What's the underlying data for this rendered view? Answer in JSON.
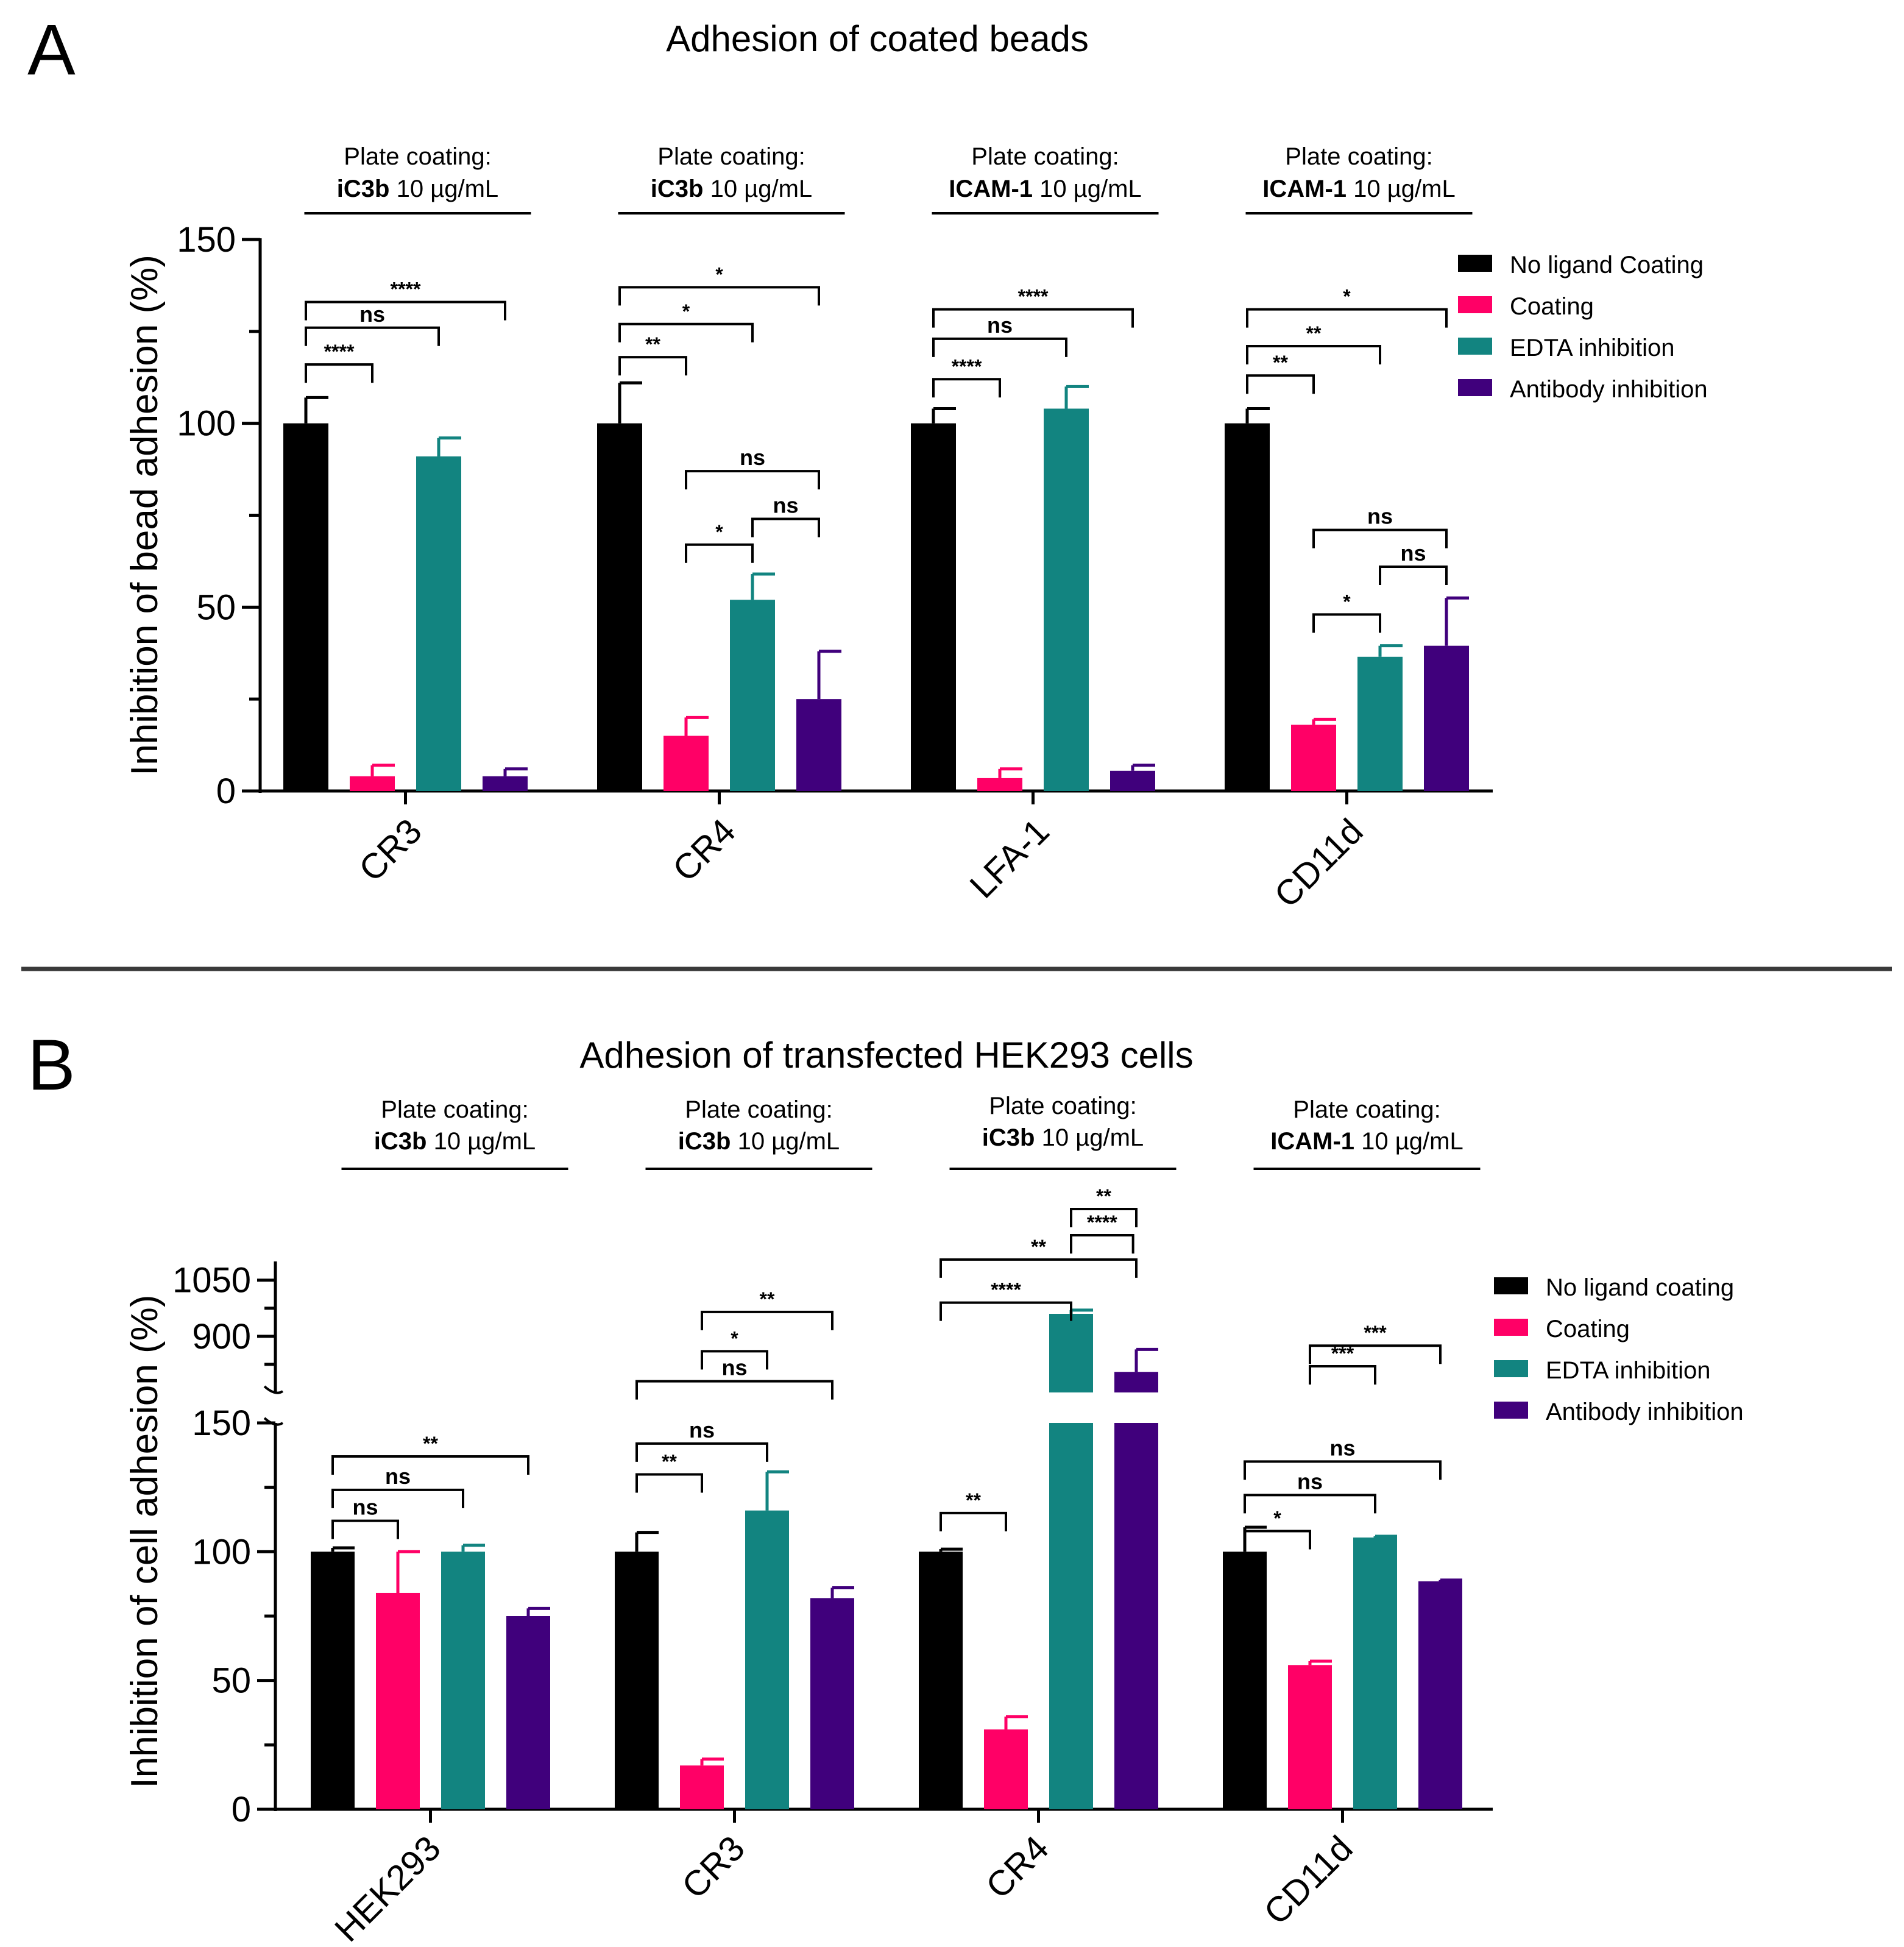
{
  "panels": {
    "a": {
      "letter": "A",
      "title": "Adhesion of coated beads"
    },
    "b": {
      "letter": "B",
      "title": "Adhesion of transfected HEK293 cells"
    }
  },
  "chart_data": [
    {
      "id": "A",
      "type": "bar",
      "title": "Adhesion of coated beads",
      "ylabel": "Inhibition of bead adhesion (%)",
      "xlabel": "",
      "ylim": [
        0,
        150
      ],
      "yticks": [
        0,
        50,
        100,
        150
      ],
      "categories": [
        "CR3",
        "CR4",
        "LFA-1",
        "CD11d"
      ],
      "plate_coating": [
        {
          "line1": "Plate coating:",
          "bold": "iC3b",
          "rest": " 10 µg/mL"
        },
        {
          "line1": "Plate coating:",
          "bold": "iC3b",
          "rest": " 10 µg/mL"
        },
        {
          "line1": "Plate coating:",
          "bold": "ICAM-1",
          "rest": " 10 µg/mL"
        },
        {
          "line1": "Plate coating:",
          "bold": "ICAM-1",
          "rest": " 10 µg/mL"
        }
      ],
      "series": [
        {
          "name": "No ligand Coating",
          "color": "#000000",
          "values": [
            100,
            100,
            100,
            100
          ],
          "errors": [
            7,
            11,
            4,
            4
          ]
        },
        {
          "name": "Coating",
          "color": "#ff0066",
          "values": [
            4,
            15,
            3.5,
            18
          ],
          "errors": [
            3,
            5,
            2.5,
            1.5
          ]
        },
        {
          "name": "EDTA inhibition",
          "color": "#128480",
          "values": [
            91,
            52,
            104,
            36.5
          ],
          "errors": [
            5,
            7,
            6,
            3
          ]
        },
        {
          "name": "Antibody inhibition",
          "color": "#40007c",
          "values": [
            4,
            25,
            5.5,
            39.5
          ],
          "errors": [
            2,
            13,
            1.5,
            13
          ]
        }
      ],
      "legend_position": "top-right",
      "significance": [
        {
          "group": 0,
          "from": 0,
          "to": 1,
          "y": 116,
          "label": "****"
        },
        {
          "group": 0,
          "from": 0,
          "to": 2,
          "y": 126,
          "label": "ns"
        },
        {
          "group": 0,
          "from": 0,
          "to": 3,
          "y": 133,
          "label": "****"
        },
        {
          "group": 1,
          "from": 0,
          "to": 1,
          "y": 118,
          "label": "**"
        },
        {
          "group": 1,
          "from": 0,
          "to": 2,
          "y": 127,
          "label": "*"
        },
        {
          "group": 1,
          "from": 0,
          "to": 3,
          "y": 137,
          "label": "*"
        },
        {
          "group": 1,
          "from": 1,
          "to": 3,
          "y": 87,
          "label": "ns"
        },
        {
          "group": 1,
          "from": 1,
          "to": 2,
          "y": 67,
          "label": "*"
        },
        {
          "group": 1,
          "from": 2,
          "to": 3,
          "y": 74,
          "label": "ns"
        },
        {
          "group": 2,
          "from": 0,
          "to": 1,
          "y": 112,
          "label": "****"
        },
        {
          "group": 2,
          "from": 0,
          "to": 2,
          "y": 123,
          "label": "ns"
        },
        {
          "group": 2,
          "from": 0,
          "to": 3,
          "y": 131,
          "label": "****"
        },
        {
          "group": 3,
          "from": 0,
          "to": 1,
          "y": 113,
          "label": "**"
        },
        {
          "group": 3,
          "from": 0,
          "to": 2,
          "y": 121,
          "label": "**"
        },
        {
          "group": 3,
          "from": 0,
          "to": 3,
          "y": 131,
          "label": "*"
        },
        {
          "group": 3,
          "from": 1,
          "to": 3,
          "y": 71,
          "label": "ns"
        },
        {
          "group": 3,
          "from": 1,
          "to": 2,
          "y": 48,
          "label": "*"
        },
        {
          "group": 3,
          "from": 2,
          "to": 3,
          "y": 61,
          "label": "ns"
        }
      ]
    },
    {
      "id": "B",
      "type": "bar",
      "title": "Adhesion of transfected HEK293 cells",
      "ylabel": "Inhibition of cell adhesion (%)",
      "xlabel": "",
      "y_axis_break": {
        "lower_range": [
          0,
          150
        ],
        "upper_range": [
          750,
          1100
        ]
      },
      "yticks_lower": [
        0,
        50,
        100,
        150
      ],
      "yticks_upper": [
        900,
        1050
      ],
      "categories": [
        "HEK293",
        "CR3",
        "CR4",
        "CD11d"
      ],
      "plate_coating": [
        {
          "line1": "Plate coating:",
          "bold": "iC3b",
          "rest": " 10 µg/mL"
        },
        {
          "line1": "Plate coating:",
          "bold": "iC3b",
          "rest": " 10 µg/mL"
        },
        {
          "line1": "Plate coating:",
          "bold": "iC3b",
          "rest": " 10 µg/mL"
        },
        {
          "line1": "Plate coating:",
          "bold": "ICAM-1",
          "rest": " 10 µg/mL"
        }
      ],
      "series": [
        {
          "name": "No ligand coating",
          "color": "#000000",
          "values": [
            100,
            100,
            100,
            100
          ],
          "errors": [
            1.5,
            7.5,
            1,
            9.5
          ]
        },
        {
          "name": "Coating",
          "color": "#ff0066",
          "values": [
            84,
            17,
            31,
            56
          ],
          "errors": [
            16,
            2.5,
            5,
            1.5
          ]
        },
        {
          "name": "EDTA inhibition",
          "color": "#128480",
          "values": [
            100,
            116,
            960,
            105.5
          ],
          "errors": [
            2.5,
            15,
            10,
            0.5
          ]
        },
        {
          "name": "Antibody inhibition",
          "color": "#40007c",
          "values": [
            75,
            82,
            805,
            88.5
          ],
          "errors": [
            3,
            4,
            60,
            0.5
          ]
        }
      ],
      "legend_position": "top-right",
      "significance": [
        {
          "group": 0,
          "from": 0,
          "to": 1,
          "y": 112,
          "label": "ns"
        },
        {
          "group": 0,
          "from": 0,
          "to": 2,
          "y": 124,
          "label": "ns"
        },
        {
          "group": 0,
          "from": 0,
          "to": 3,
          "y": 137,
          "label": "**"
        },
        {
          "group": 1,
          "from": 0,
          "to": 1,
          "y": 130,
          "label": "**"
        },
        {
          "group": 1,
          "from": 0,
          "to": 2,
          "y": 142,
          "label": "ns"
        },
        {
          "group": 1,
          "from": 0,
          "to": 3,
          "y": 780,
          "label": "ns"
        },
        {
          "group": 1,
          "from": 1,
          "to": 2,
          "y": 860,
          "label": "*"
        },
        {
          "group": 1,
          "from": 1,
          "to": 3,
          "y": 965,
          "label": "**"
        },
        {
          "group": 2,
          "from": 0,
          "to": 1,
          "y": 115,
          "label": "**"
        },
        {
          "group": 2,
          "from": 0,
          "to": 2,
          "y": 990,
          "label": "****"
        },
        {
          "group": 2,
          "from": 0,
          "to": 3,
          "y": 1105,
          "label": "**"
        },
        {
          "group": 2,
          "from": 2,
          "to": 3,
          "y": 1240,
          "label": "**"
        },
        {
          "group": 2,
          "from": 2,
          "to": 2.95,
          "y": 1170,
          "label": "****"
        },
        {
          "group": 3,
          "from": 0,
          "to": 1,
          "y": 108,
          "label": "*"
        },
        {
          "group": 3,
          "from": 0,
          "to": 2,
          "y": 122,
          "label": "ns"
        },
        {
          "group": 3,
          "from": 0,
          "to": 3,
          "y": 135,
          "label": "ns"
        },
        {
          "group": 3,
          "from": 1,
          "to": 2,
          "y": 820,
          "label": "***"
        },
        {
          "group": 3,
          "from": 1,
          "to": 3,
          "y": 875,
          "label": "***"
        }
      ]
    }
  ]
}
